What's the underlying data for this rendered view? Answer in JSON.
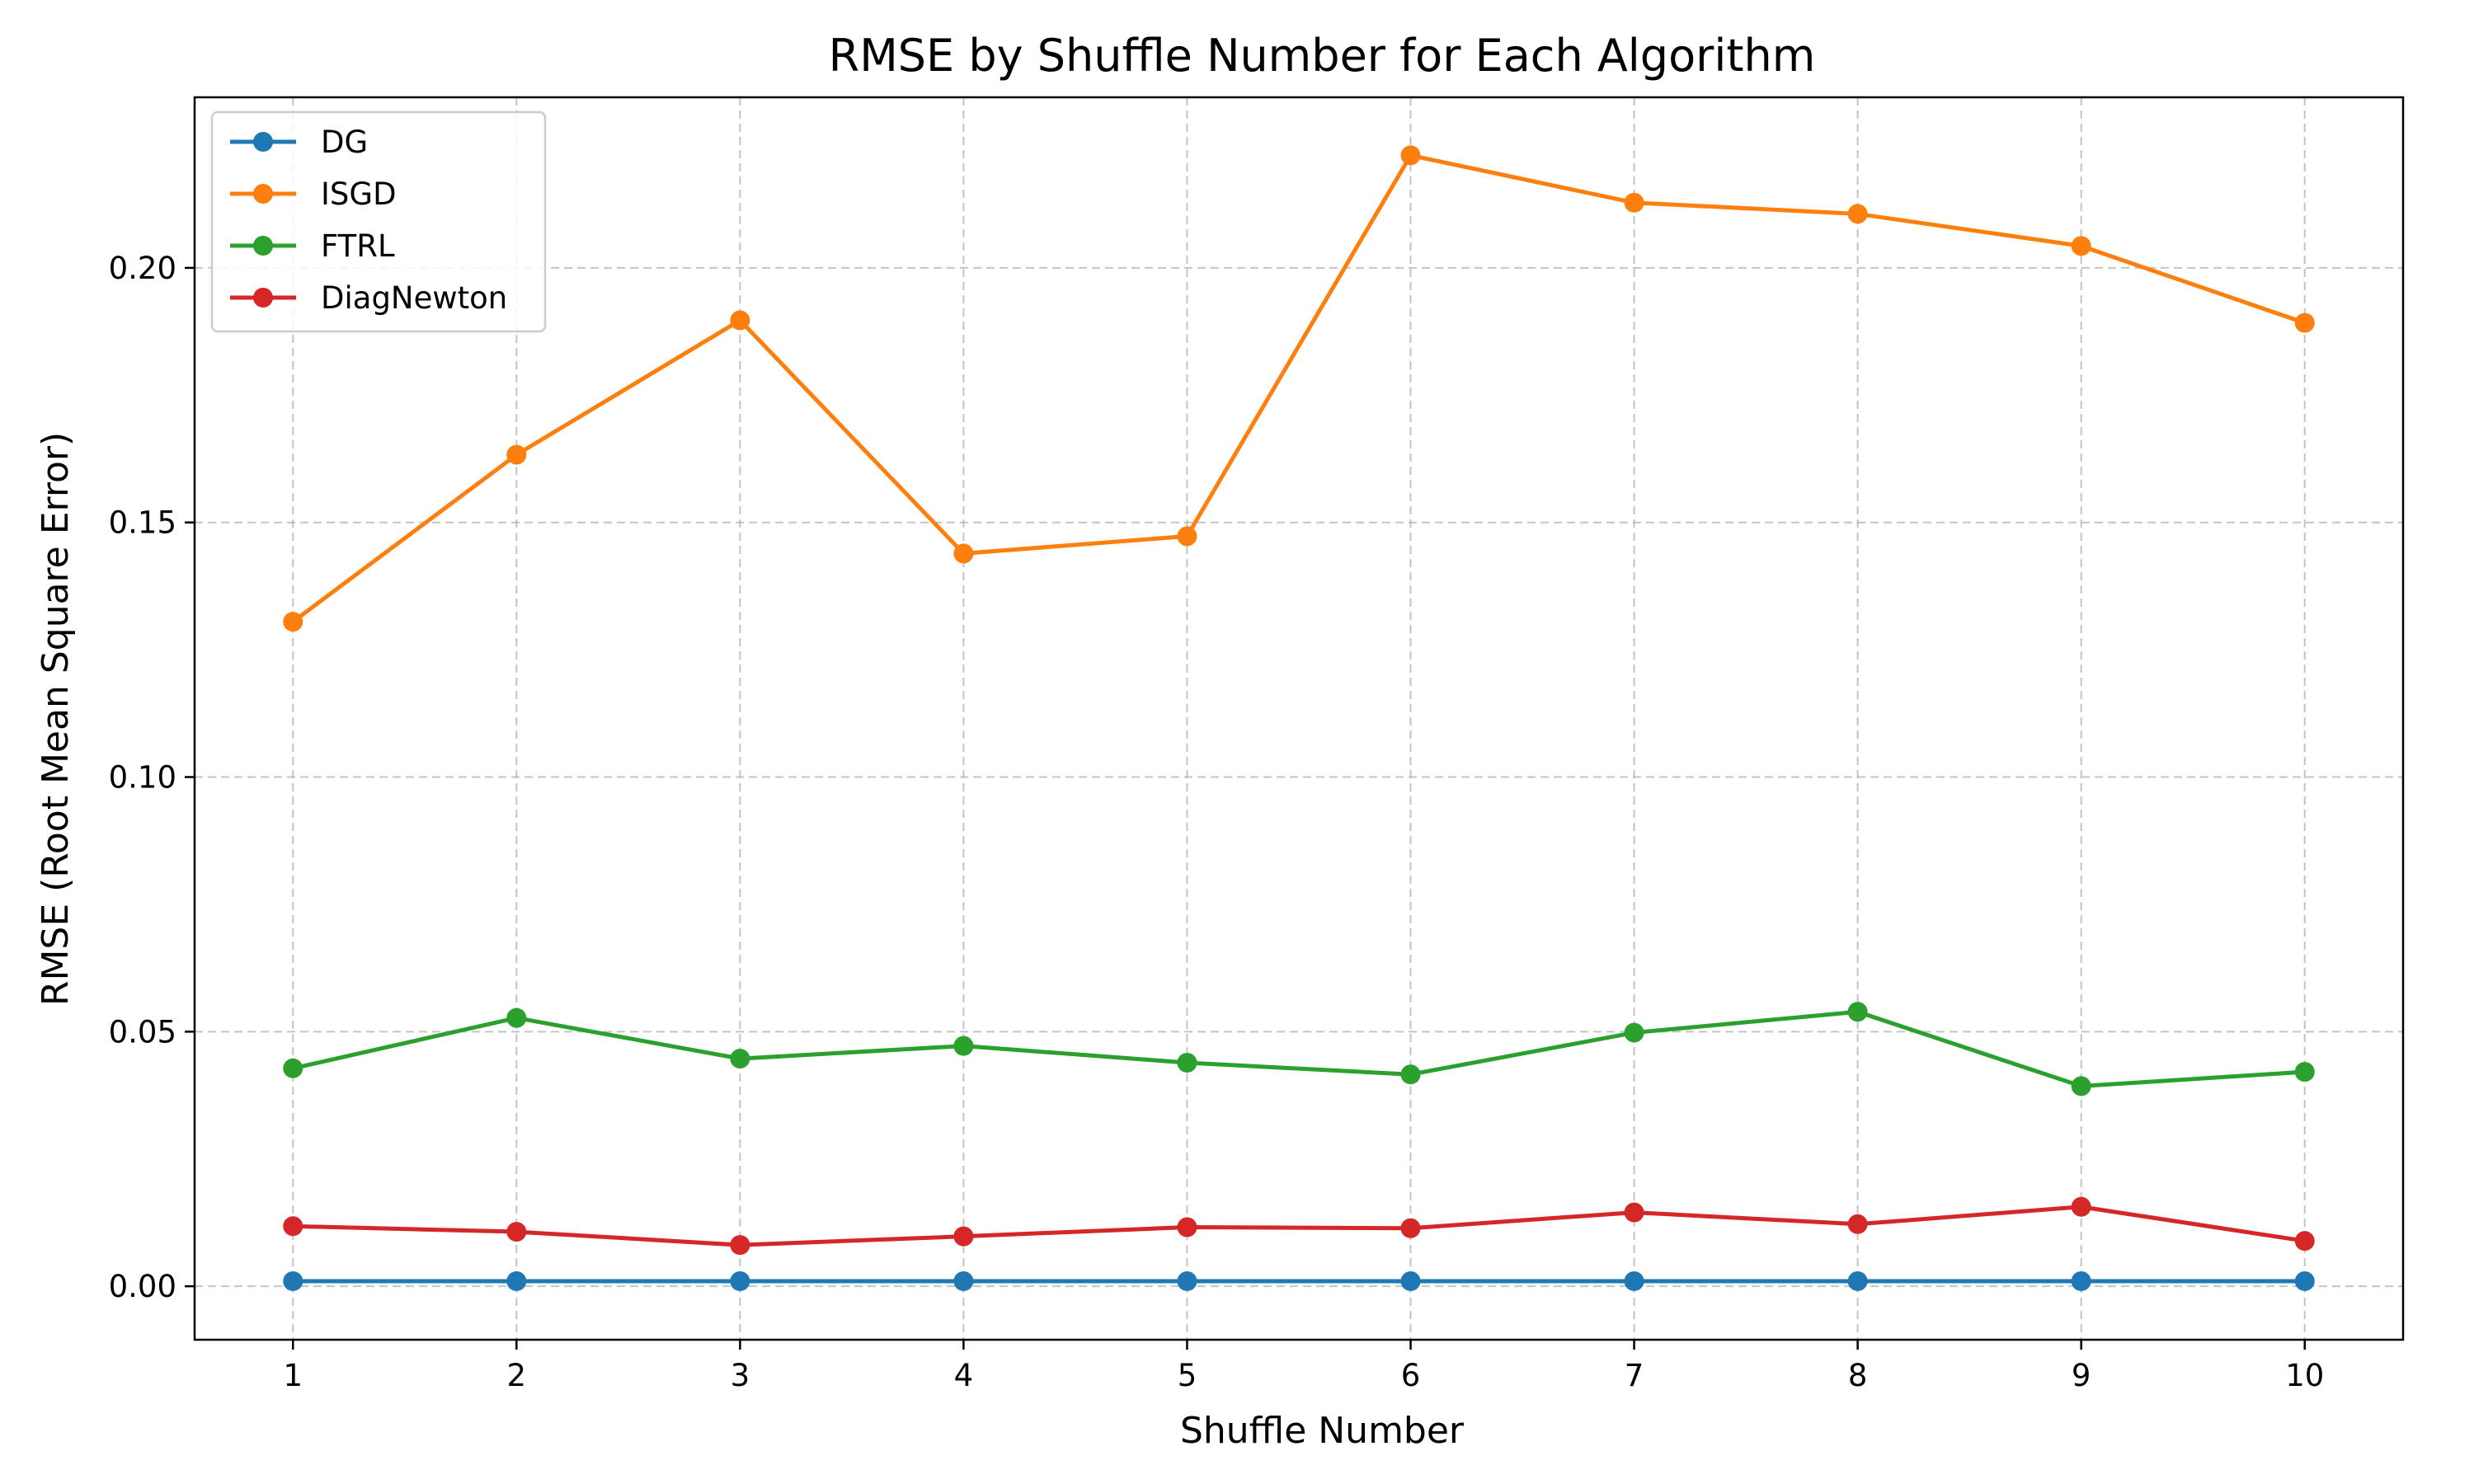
{
  "chart_data": {
    "type": "line",
    "title": "RMSE by Shuffle Number for Each Algorithm",
    "xlabel": "Shuffle Number",
    "ylabel": "RMSE (Root Mean Square Error)",
    "x": [
      1,
      2,
      3,
      4,
      5,
      6,
      7,
      8,
      9,
      10
    ],
    "xlim": [
      0.56,
      10.44
    ],
    "ylim": [
      -0.0105,
      0.2335
    ],
    "yticks": [
      0.0,
      0.05,
      0.1,
      0.15,
      0.2
    ],
    "ytick_labels": [
      "0.00",
      "0.05",
      "0.10",
      "0.15",
      "0.20"
    ],
    "xticks": [
      1,
      2,
      3,
      4,
      5,
      6,
      7,
      8,
      9,
      10
    ],
    "xtick_labels": [
      "1",
      "2",
      "3",
      "4",
      "5",
      "6",
      "7",
      "8",
      "9",
      "10"
    ],
    "grid": true,
    "legend_position": "top-left",
    "series": [
      {
        "name": "DG",
        "color": "#1f77b4",
        "values": [
          0.001,
          0.001,
          0.001,
          0.001,
          0.001,
          0.001,
          0.001,
          0.001,
          0.001,
          0.001
        ]
      },
      {
        "name": "ISGD",
        "color": "#ff7f0e",
        "values": [
          0.1305,
          0.1633,
          0.1897,
          0.1439,
          0.1473,
          0.2221,
          0.2128,
          0.2106,
          0.2043,
          0.1892
        ]
      },
      {
        "name": "FTRL",
        "color": "#2ca02c",
        "values": [
          0.0428,
          0.0527,
          0.0447,
          0.0472,
          0.0439,
          0.0416,
          0.0498,
          0.0539,
          0.0393,
          0.0421
        ]
      },
      {
        "name": "DiagNewton",
        "color": "#d62728",
        "values": [
          0.0118,
          0.0107,
          0.0081,
          0.0098,
          0.0116,
          0.0114,
          0.0145,
          0.0122,
          0.0156,
          0.0089
        ]
      }
    ]
  }
}
